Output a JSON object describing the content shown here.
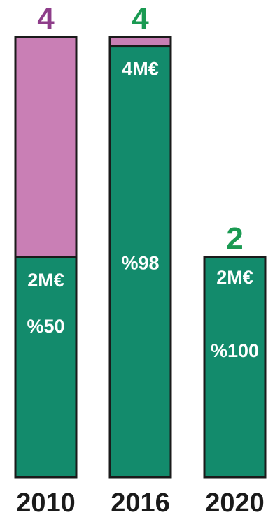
{
  "chart_data": {
    "type": "bar",
    "stacked": true,
    "categories": [
      "2010",
      "2016",
      "2020"
    ],
    "totals": [
      "4",
      "4",
      "2"
    ],
    "total_colors": [
      "#8e3d8a",
      "#1a9a52",
      "#1a9a52"
    ],
    "series": [
      {
        "values": [
          2,
          3.92,
          2
        ],
        "percent_labels": [
          "%50",
          "%98",
          "%100"
        ],
        "amount_labels": [
          "2M€",
          "4M€",
          "2M€"
        ],
        "color": "#138b6c"
      },
      {
        "values": [
          2,
          0.08,
          0
        ],
        "color": "#c97fb5"
      }
    ],
    "ylim": [
      0,
      4
    ],
    "grid": false,
    "legend": "none"
  },
  "colors": {
    "background": "#ffffff",
    "bar_outline": "#1a1a1a",
    "label_text": "#ffffff",
    "year_text": "#1a1a1a"
  }
}
